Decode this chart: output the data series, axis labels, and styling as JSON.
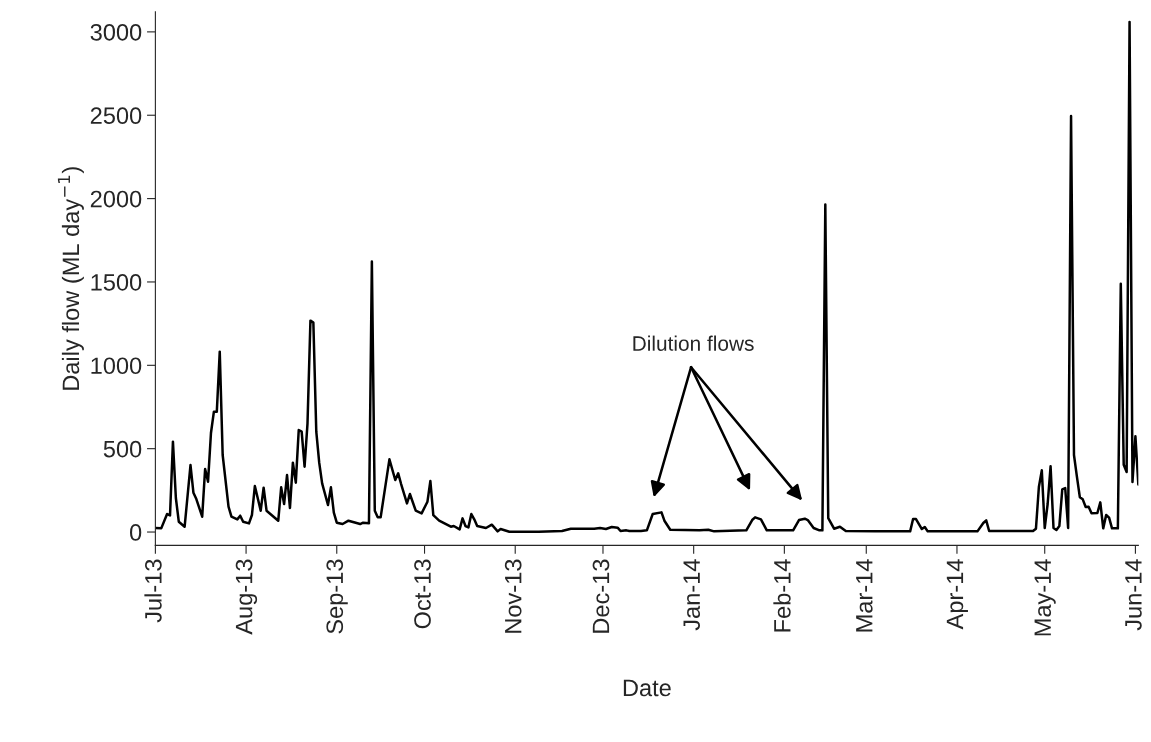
{
  "chart_data": {
    "type": "line",
    "xlabel": "Date",
    "ylabel": "Daily flow (ML day$^{−1}$)",
    "x": [
      "2013-07-01",
      "2013-07-03",
      "2013-07-05",
      "2013-07-06",
      "2013-07-07",
      "2013-07-08",
      "2013-07-09",
      "2013-07-11",
      "2013-07-13",
      "2013-07-14",
      "2013-07-15",
      "2013-07-17",
      "2013-07-18",
      "2013-07-19",
      "2013-07-20",
      "2013-07-21",
      "2013-07-22",
      "2013-07-23",
      "2013-07-24",
      "2013-07-26",
      "2013-07-27",
      "2013-07-29",
      "2013-07-30",
      "2013-07-31",
      "2013-08-02",
      "2013-08-03",
      "2013-08-04",
      "2013-08-06",
      "2013-08-07",
      "2013-08-08",
      "2013-08-12",
      "2013-08-13",
      "2013-08-14",
      "2013-08-15",
      "2013-08-16",
      "2013-08-17",
      "2013-08-18",
      "2013-08-19",
      "2013-08-20",
      "2013-08-21",
      "2013-08-22",
      "2013-08-23",
      "2013-08-24",
      "2013-08-25",
      "2013-08-26",
      "2013-08-27",
      "2013-08-29",
      "2013-08-30",
      "2013-08-31",
      "2013-09-01",
      "2013-09-03",
      "2013-09-05",
      "2013-09-09",
      "2013-09-10",
      "2013-09-12",
      "2013-09-13",
      "2013-09-14",
      "2013-09-15",
      "2013-09-16",
      "2013-09-19",
      "2013-09-21",
      "2013-09-22",
      "2013-09-23",
      "2013-09-25",
      "2013-09-26",
      "2013-09-28",
      "2013-09-30",
      "2013-10-02",
      "2013-10-03",
      "2013-10-04",
      "2013-10-06",
      "2013-10-10",
      "2013-10-11",
      "2013-10-13",
      "2013-10-14",
      "2013-10-15",
      "2013-10-16",
      "2013-10-17",
      "2013-10-18",
      "2013-10-19",
      "2013-10-22",
      "2013-10-24",
      "2013-10-26",
      "2013-10-27",
      "2013-10-30",
      "2013-11-09",
      "2013-11-17",
      "2013-11-20",
      "2013-11-28",
      "2013-11-30",
      "2013-12-02",
      "2013-12-04",
      "2013-12-06",
      "2013-12-07",
      "2013-12-09",
      "2013-12-10",
      "2013-12-14",
      "2013-12-16",
      "2013-12-18",
      "2013-12-21",
      "2013-12-22",
      "2013-12-24",
      "2014-01-03",
      "2014-01-06",
      "2014-01-08",
      "2014-01-19",
      "2014-01-21",
      "2014-01-22",
      "2014-01-24",
      "2014-01-26",
      "2014-02-04",
      "2014-02-06",
      "2014-02-08",
      "2014-02-09",
      "2014-02-11",
      "2014-02-13",
      "2014-02-14",
      "2014-02-15",
      "2014-02-16",
      "2014-02-18",
      "2014-02-20",
      "2014-02-22",
      "2014-03-04",
      "2014-03-16",
      "2014-03-17",
      "2014-03-18",
      "2014-03-20",
      "2014-03-21",
      "2014-03-22",
      "2014-04-08",
      "2014-04-10",
      "2014-04-11",
      "2014-04-12",
      "2014-04-27",
      "2014-04-28",
      "2014-04-29",
      "2014-04-30",
      "2014-05-01",
      "2014-05-02",
      "2014-05-03",
      "2014-05-04",
      "2014-05-05",
      "2014-05-06",
      "2014-05-07",
      "2014-05-08",
      "2014-05-09",
      "2014-05-10",
      "2014-05-11",
      "2014-05-12",
      "2014-05-13",
      "2014-05-14",
      "2014-05-15",
      "2014-05-16",
      "2014-05-17",
      "2014-05-19",
      "2014-05-20",
      "2014-05-21",
      "2014-05-22",
      "2014-05-23",
      "2014-05-24",
      "2014-05-26",
      "2014-05-27",
      "2014-05-28",
      "2014-05-29",
      "2014-05-30",
      "2014-05-31",
      "2014-06-01",
      "2014-06-02"
    ],
    "series": [
      {
        "color": "#000000",
        "values": [
          24,
          22,
          108,
          100,
          542,
          204,
          62,
          32,
          402,
          236,
          198,
          92,
          378,
          302,
          594,
          722,
          722,
          1082,
          462,
          152,
          92,
          76,
          98,
          62,
          52,
          102,
          276,
          128,
          266,
          128,
          68,
          268,
          168,
          342,
          144,
          416,
          296,
          612,
          602,
          392,
          652,
          1268,
          1256,
          602,
          416,
          292,
          162,
          268,
          116,
          56,
          48,
          68,
          48,
          56,
          52,
          1622,
          128,
          88,
          88,
          436,
          312,
          352,
          288,
          172,
          228,
          128,
          112,
          182,
          306,
          102,
          68,
          32,
          36,
          16,
          82,
          36,
          28,
          108,
          76,
          36,
          24,
          44,
          4,
          18,
          2,
          2,
          6,
          20,
          20,
          24,
          18,
          30,
          26,
          6,
          10,
          6,
          6,
          10,
          108,
          118,
          68,
          14,
          10,
          14,
          4,
          10,
          72,
          88,
          76,
          10,
          10,
          72,
          80,
          72,
          24,
          10,
          10,
          1965,
          84,
          20,
          32,
          6,
          4,
          4,
          78,
          78,
          18,
          30,
          4,
          4,
          54,
          70,
          6,
          6,
          20,
          270,
          370,
          24,
          168,
          394,
          24,
          12,
          36,
          256,
          264,
          24,
          2496,
          462,
          332,
          209,
          196,
          150,
          152,
          112,
          114,
          178,
          22,
          102,
          86,
          22,
          22,
          1489,
          404,
          360,
          3060,
          300,
          574,
          285
        ]
      }
    ],
    "xlim": [
      "2013-07-01",
      "2014-06-02"
    ],
    "xticks": [
      {
        "value": "2013-07-01",
        "label": "Jul-13"
      },
      {
        "value": "2013-08-01",
        "label": "Aug-13"
      },
      {
        "value": "2013-09-01",
        "label": "Sep-13"
      },
      {
        "value": "2013-10-01",
        "label": "Oct-13"
      },
      {
        "value": "2013-11-01",
        "label": "Nov-13"
      },
      {
        "value": "2013-12-01",
        "label": "Dec-13"
      },
      {
        "value": "2014-01-01",
        "label": "Jan-14"
      },
      {
        "value": "2014-02-01",
        "label": "Feb-14"
      },
      {
        "value": "2014-03-01",
        "label": "Mar-14"
      },
      {
        "value": "2014-04-01",
        "label": "Apr-14"
      },
      {
        "value": "2014-05-01",
        "label": "May-14"
      },
      {
        "value": "2014-06-01",
        "label": "Jun-14"
      }
    ],
    "ylim": [
      -80,
      3120
    ],
    "yticks": [
      0,
      500,
      1000,
      1500,
      2000,
      2500,
      3000
    ],
    "grid": false,
    "legend": false,
    "marker": "none",
    "line_style": "solid",
    "annotations": [
      "Dilution flows"
    ]
  }
}
